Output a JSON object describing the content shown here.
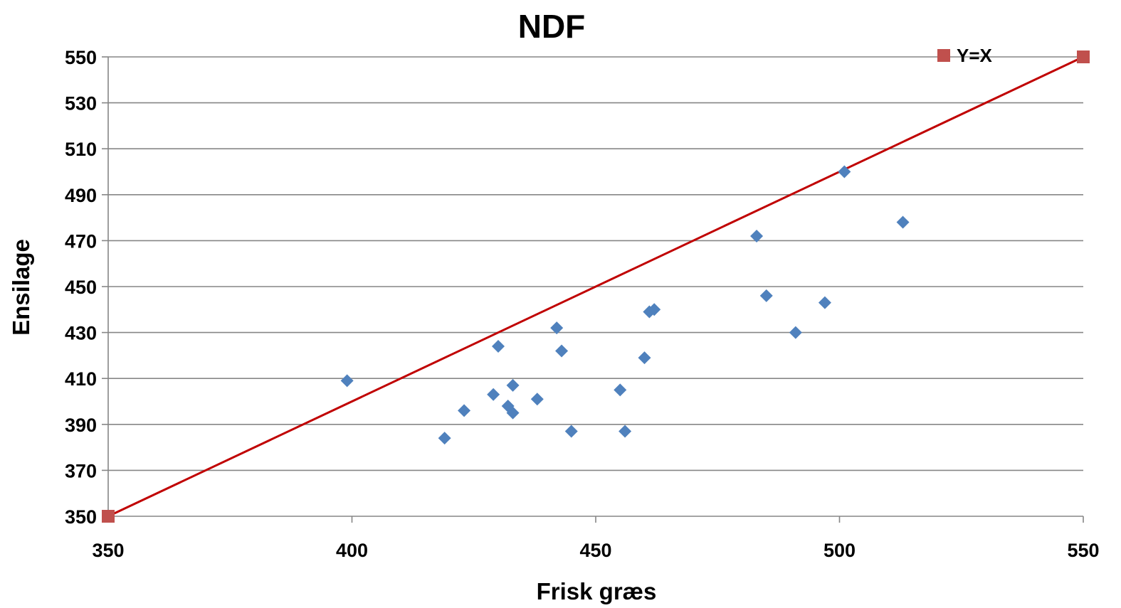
{
  "chart_data": {
    "type": "scatter",
    "title": "NDF",
    "xlabel": "Frisk græs",
    "ylabel": "Ensilage",
    "xlim": [
      350,
      550
    ],
    "ylim": [
      350,
      550
    ],
    "x_ticks": [
      350,
      400,
      450,
      500,
      550
    ],
    "y_ticks": [
      350,
      370,
      390,
      410,
      430,
      450,
      470,
      490,
      510,
      530,
      550
    ],
    "grid": "horizontal",
    "legend_position": "top-right",
    "series": [
      {
        "marker": "diamond",
        "color": "#4F81BD",
        "points": [
          [
            399,
            409
          ],
          [
            419,
            384
          ],
          [
            423,
            396
          ],
          [
            429,
            403
          ],
          [
            430,
            424
          ],
          [
            432,
            398
          ],
          [
            433,
            395
          ],
          [
            433,
            407
          ],
          [
            438,
            401
          ],
          [
            442,
            432
          ],
          [
            443,
            422
          ],
          [
            445,
            387
          ],
          [
            455,
            405
          ],
          [
            456,
            387
          ],
          [
            460,
            419
          ],
          [
            461,
            439
          ],
          [
            462,
            440
          ],
          [
            483,
            472
          ],
          [
            485,
            446
          ],
          [
            491,
            430
          ],
          [
            497,
            443
          ],
          [
            501,
            500
          ],
          [
            513,
            478
          ]
        ]
      },
      {
        "name": "Y=X",
        "marker": "square",
        "color": "#C0504D",
        "line_color": "#C00000",
        "points": [
          [
            350,
            350
          ],
          [
            550,
            550
          ]
        ]
      }
    ]
  }
}
